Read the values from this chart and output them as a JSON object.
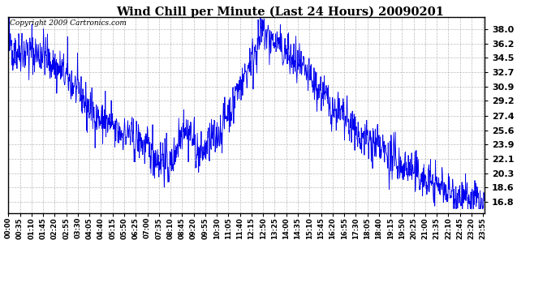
{
  "title": "Wind Chill per Minute (Last 24 Hours) 20090201",
  "copyright_text": "Copyright 2009 Cartronics.com",
  "line_color": "#0000ee",
  "bg_color": "#ffffff",
  "grid_color": "#bbbbbb",
  "yticks": [
    16.8,
    18.6,
    20.3,
    22.1,
    23.9,
    25.6,
    27.4,
    29.2,
    30.9,
    32.7,
    34.5,
    36.2,
    38.0
  ],
  "ylim": [
    15.5,
    39.5
  ],
  "xtick_labels": [
    "00:00",
    "00:35",
    "01:10",
    "01:45",
    "02:20",
    "02:55",
    "03:30",
    "04:05",
    "04:40",
    "05:15",
    "05:50",
    "06:25",
    "07:00",
    "07:35",
    "08:10",
    "08:45",
    "09:20",
    "09:55",
    "10:30",
    "11:05",
    "11:40",
    "12:15",
    "12:50",
    "13:25",
    "14:00",
    "14:35",
    "15:10",
    "15:45",
    "16:20",
    "16:55",
    "17:30",
    "18:05",
    "18:40",
    "19:15",
    "19:50",
    "20:25",
    "21:00",
    "21:35",
    "22:10",
    "22:45",
    "23:20",
    "23:55"
  ],
  "xtick_positions": [
    0,
    35,
    70,
    105,
    140,
    175,
    210,
    245,
    280,
    315,
    350,
    385,
    420,
    455,
    490,
    525,
    560,
    595,
    630,
    665,
    700,
    735,
    770,
    805,
    840,
    875,
    910,
    945,
    980,
    1015,
    1050,
    1085,
    1120,
    1155,
    1190,
    1225,
    1260,
    1295,
    1330,
    1365,
    1400,
    1435
  ],
  "seed": 42
}
